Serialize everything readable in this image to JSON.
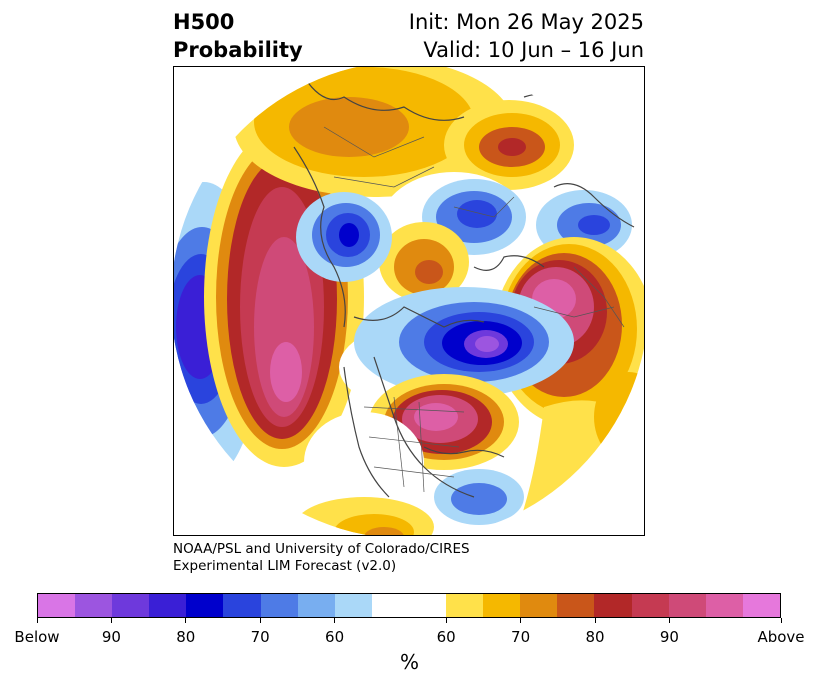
{
  "header": {
    "title_line1": "H500",
    "title_line2": "Probability",
    "init": "Init: Mon 26 May 2025",
    "valid": "Valid: 10 Jun – 16 Jun"
  },
  "credit": {
    "line1": "NOAA/PSL and University of Colorado/CIRES",
    "line2": "Experimental LIM Forecast (v2.0)"
  },
  "colorbar": {
    "unit": "%",
    "tick_labels": [
      "Below",
      "90",
      "80",
      "70",
      "60",
      "60",
      "70",
      "80",
      "90",
      "Above"
    ],
    "colors": [
      "#d975e6",
      "#9c55e0",
      "#6e39dc",
      "#3a1fd6",
      "#0000cc",
      "#2a44dd",
      "#4e7be6",
      "#78aef0",
      "#aad8f8",
      "#ffffff",
      "#ffffff",
      "#ffe14a",
      "#f5b800",
      "#e08a0f",
      "#c9561a",
      "#b22828",
      "#c53a52",
      "#cf4a78",
      "#dd5fa6",
      "#e678dc"
    ]
  },
  "map": {
    "projection": "north polar stereographic",
    "features": [
      "coastlines",
      "country borders",
      "state/province borders"
    ]
  }
}
